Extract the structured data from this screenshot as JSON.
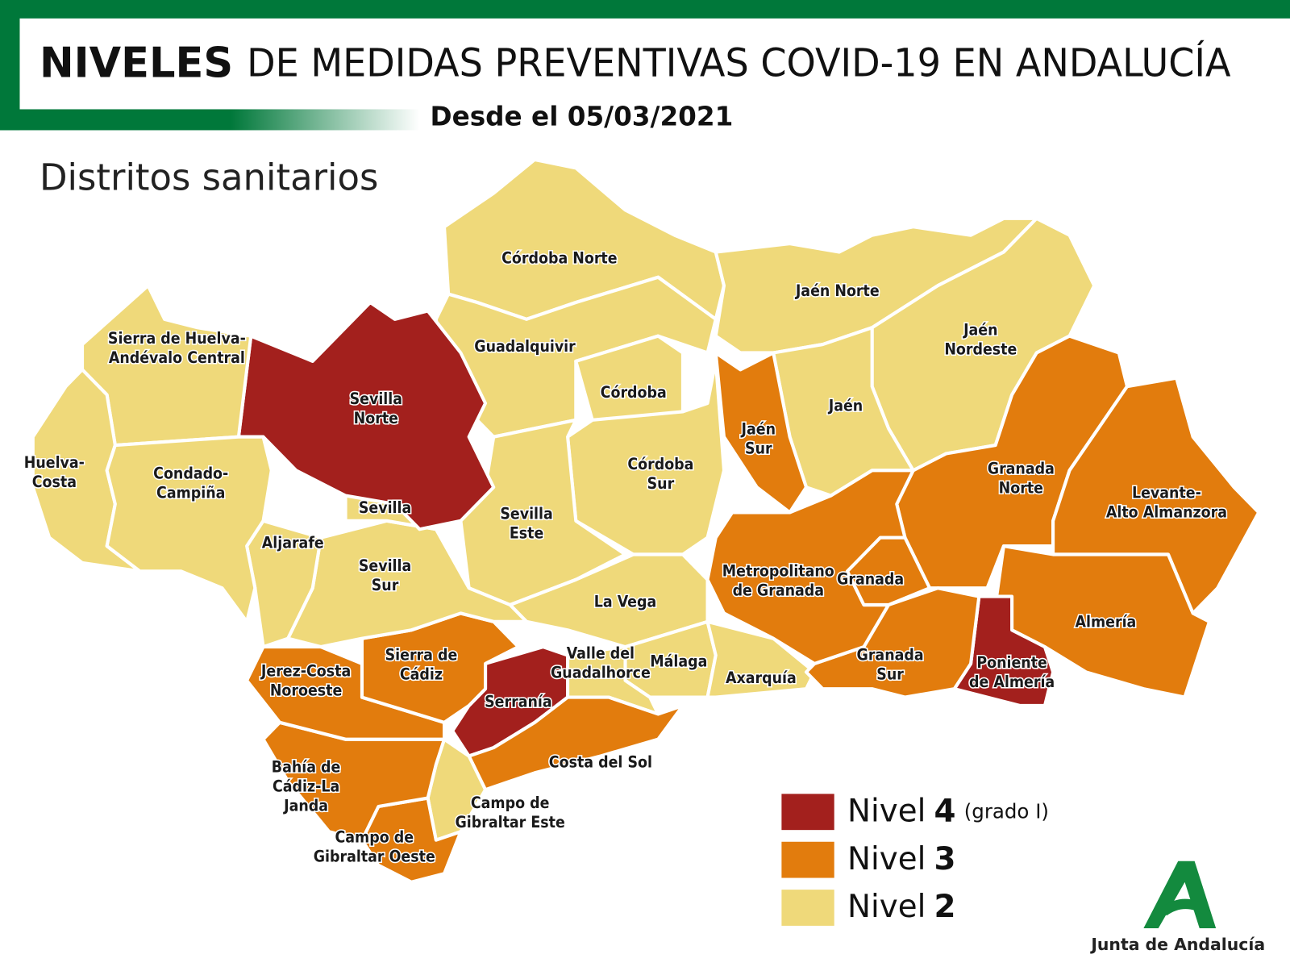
{
  "header": {
    "title_bold": "NIVELES",
    "title_rest": "DE MEDIDAS PREVENTIVAS COVID-19 EN ANDALUCÍA",
    "date": "Desde el 05/03/2021"
  },
  "map": {
    "title": "Distritos sanitarios",
    "regions": [
      {
        "lines": [
          "Córdoba Norte"
        ],
        "level": 2
      },
      {
        "lines": [
          "Guadalquivir"
        ],
        "level": 2
      },
      {
        "lines": [
          "Córdoba"
        ],
        "level": 2
      },
      {
        "lines": [
          "Córdoba",
          "Sur"
        ],
        "level": 2
      },
      {
        "lines": [
          "Sevilla",
          "Este"
        ],
        "level": 2
      },
      {
        "lines": [
          "La Vega"
        ],
        "level": 2
      },
      {
        "lines": [
          "Málaga"
        ],
        "level": 2
      },
      {
        "lines": [
          "Axarquía"
        ],
        "level": 2
      },
      {
        "lines": [
          "Valle del",
          "Guadalhorce"
        ],
        "level": 2
      },
      {
        "lines": [
          "Serranía"
        ],
        "level": 4
      },
      {
        "lines": [
          "Costa del Sol"
        ],
        "level": 3
      },
      {
        "lines": [
          "Campo de",
          "Gibraltar Este"
        ],
        "level": 2
      },
      {
        "lines": [
          "Campo de",
          "Gibraltar Oeste"
        ],
        "level": 3
      },
      {
        "lines": [
          "Bahía de",
          "Cádiz-La",
          "Janda"
        ],
        "level": 3
      },
      {
        "lines": [
          "Jerez-Costa",
          "Noroeste"
        ],
        "level": 3
      },
      {
        "lines": [
          "Sierra de",
          "Cádiz"
        ],
        "level": 3
      },
      {
        "lines": [
          "Sevilla",
          "Sur"
        ],
        "level": 2
      },
      {
        "lines": [
          "Aljarafe"
        ],
        "level": 2
      },
      {
        "lines": [
          "Sevilla"
        ],
        "level": 2
      },
      {
        "lines": [
          "Sevilla",
          "Norte"
        ],
        "level": 4
      },
      {
        "lines": [
          "Sierra de Huelva-",
          "Andévalo Central"
        ],
        "level": 2
      },
      {
        "lines": [
          "Huelva-",
          "Costa"
        ],
        "level": 2
      },
      {
        "lines": [
          "Condado-",
          "Campiña"
        ],
        "level": 2
      },
      {
        "lines": [
          "Jaén Norte"
        ],
        "level": 2
      },
      {
        "lines": [
          "Jaén",
          "Nordeste"
        ],
        "level": 2
      },
      {
        "lines": [
          "Jaén"
        ],
        "level": 2
      },
      {
        "lines": [
          "Jaén",
          "Sur"
        ],
        "level": 3
      },
      {
        "lines": [
          "Granada",
          "Norte"
        ],
        "level": 3
      },
      {
        "lines": [
          "Levante-",
          "Alto Almanzora"
        ],
        "level": 3
      },
      {
        "lines": [
          "Almería"
        ],
        "level": 3
      },
      {
        "lines": [
          "Poniente",
          "de Almería"
        ],
        "level": 4
      },
      {
        "lines": [
          "Granada",
          "Sur"
        ],
        "level": 3
      },
      {
        "lines": [
          "Metropolitano",
          "de Granada"
        ],
        "level": 3
      },
      {
        "lines": [
          "Granada"
        ],
        "level": 3
      }
    ]
  },
  "legend": [
    {
      "label": "Nivel",
      "level": 4,
      "note": "(grado I)",
      "color": "#a3201d"
    },
    {
      "label": "Nivel",
      "level": 3,
      "color": "#e27c0d"
    },
    {
      "label": "Nivel",
      "level": 2,
      "color": "#efd97a"
    }
  ],
  "footer": {
    "logo_text": "Junta de Andalucía"
  }
}
